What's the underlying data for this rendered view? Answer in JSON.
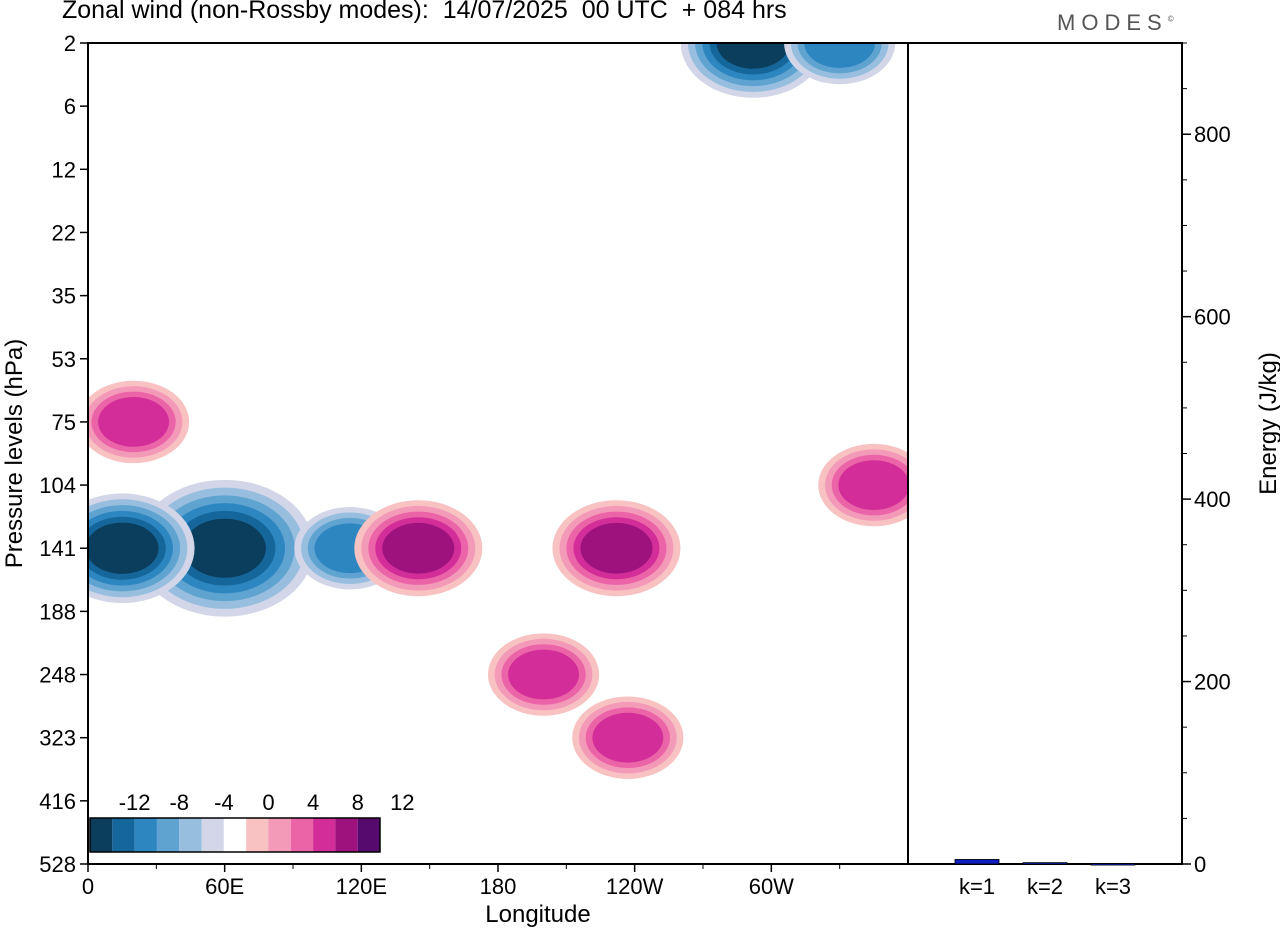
{
  "header": {
    "title": "Zonal wind (non-Rossby modes):  14/07/2025  00 UTC  + 084 hrs",
    "brand": "MODES",
    "brand_mark": "©"
  },
  "chart_data": [
    {
      "type": "heatmap",
      "title": "Zonal wind (non-Rossby modes):  14/07/2025  00 UTC  + 084 hrs",
      "xlabel": "Longitude",
      "ylabel": "Pressure levels (hPa)",
      "x_ticks": [
        "0",
        "60E",
        "120E",
        "180",
        "120W",
        "60W"
      ],
      "y_ticks": [
        "2",
        "6",
        "12",
        "22",
        "35",
        "53",
        "75",
        "104",
        "141",
        "188",
        "248",
        "323",
        "416",
        "528"
      ],
      "xlim": [
        0,
        360
      ],
      "color_scale": {
        "labels": [
          "-12",
          "-8",
          "-4",
          "0",
          "4",
          "8",
          "12"
        ],
        "colors": [
          "#0b3d5c",
          "#15679b",
          "#2e86c1",
          "#5fa3d0",
          "#98bedf",
          "#d2d6e8",
          "#ffffff",
          "#f8c2c2",
          "#f49ab9",
          "#ec64a8",
          "#d22d98",
          "#9e127d",
          "#560a6e"
        ]
      },
      "features": [
        {
          "sign": "negative",
          "min_value": -16,
          "lon": 60,
          "level": "141"
        },
        {
          "sign": "negative",
          "min_value": -12,
          "lon": 15,
          "level": "141"
        },
        {
          "sign": "negative",
          "min_value": -8,
          "lon": 115,
          "level": "141"
        },
        {
          "sign": "negative",
          "min_value": -12,
          "lon": 292,
          "level": "2"
        },
        {
          "sign": "negative",
          "min_value": -8,
          "lon": 330,
          "level": "2"
        },
        {
          "sign": "positive",
          "max_value": 10,
          "lon": 145,
          "level": "141"
        },
        {
          "sign": "positive",
          "max_value": 10,
          "lon": 232,
          "level": "141"
        },
        {
          "sign": "positive",
          "max_value": 8,
          "lon": 200,
          "level": "248"
        },
        {
          "sign": "positive",
          "max_value": 8,
          "lon": 237,
          "level": "323"
        },
        {
          "sign": "positive",
          "max_value": 8,
          "lon": 20,
          "level": "75"
        },
        {
          "sign": "positive",
          "max_value": 8,
          "lon": 345,
          "level": "104"
        }
      ]
    },
    {
      "type": "bar",
      "categories": [
        "k=1",
        "k=2",
        "k=3"
      ],
      "values": [
        5,
        1.5,
        0.5
      ],
      "ylabel": "Energy (J/kg)",
      "ylim": [
        0,
        900
      ],
      "y_ticks": [
        0,
        200,
        400,
        600,
        800
      ],
      "bar_color": "#1020c0"
    }
  ]
}
